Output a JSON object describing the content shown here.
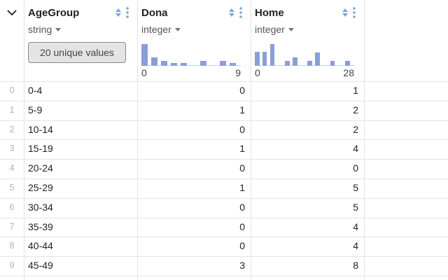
{
  "columns": [
    {
      "name": "AgeGroup",
      "type": "string",
      "summary": "20 unique values"
    },
    {
      "name": "Dona",
      "type": "integer",
      "hist_min": "0",
      "hist_max": "9",
      "histogram": [
        0.9,
        0.36,
        0.22,
        0.12,
        0.12,
        0,
        0.22,
        0,
        0.22,
        0.12
      ]
    },
    {
      "name": "Home",
      "type": "integer",
      "hist_min": "0",
      "hist_max": "28",
      "histogram": [
        0.58,
        0.58,
        0.9,
        0,
        0.22,
        0.36,
        0,
        0.2,
        0.56,
        0,
        0.22,
        0,
        0.22
      ]
    }
  ],
  "rows": [
    {
      "index": "0",
      "AgeGroup": "0-4",
      "Dona": "0",
      "Home": "1"
    },
    {
      "index": "1",
      "AgeGroup": "5-9",
      "Dona": "1",
      "Home": "2"
    },
    {
      "index": "2",
      "AgeGroup": "10-14",
      "Dona": "0",
      "Home": "2"
    },
    {
      "index": "3",
      "AgeGroup": "15-19",
      "Dona": "1",
      "Home": "4"
    },
    {
      "index": "4",
      "AgeGroup": "20-24",
      "Dona": "0",
      "Home": "0"
    },
    {
      "index": "5",
      "AgeGroup": "25-29",
      "Dona": "1",
      "Home": "5"
    },
    {
      "index": "6",
      "AgeGroup": "30-34",
      "Dona": "0",
      "Home": "5"
    },
    {
      "index": "7",
      "AgeGroup": "35-39",
      "Dona": "0",
      "Home": "4"
    },
    {
      "index": "8",
      "AgeGroup": "40-44",
      "Dona": "0",
      "Home": "4"
    },
    {
      "index": "9",
      "AgeGroup": "45-49",
      "Dona": "3",
      "Home": "8"
    }
  ],
  "colors": {
    "histogram_bar": "#8a9fd6",
    "icon_accent": "#7aa6d8",
    "grid_line": "#e3e3e3"
  }
}
